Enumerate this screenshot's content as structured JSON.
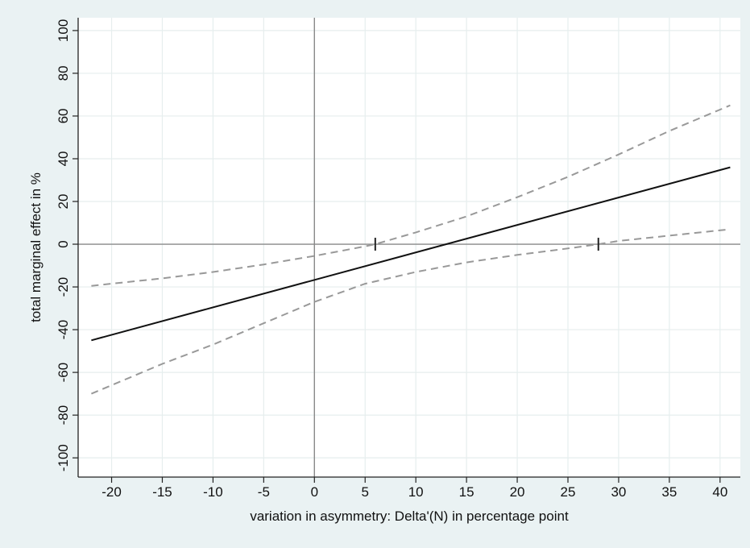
{
  "chart_data": {
    "type": "line",
    "title": "",
    "xlabel": "variation in asymmetry: Delta'(N) in percentage point",
    "ylabel": "total marginal effect in %",
    "xlim": [
      -23.3,
      42.0
    ],
    "ylim": [
      -109,
      106
    ],
    "x_ticks": [
      -20,
      -15,
      -10,
      -5,
      0,
      5,
      10,
      15,
      20,
      25,
      30,
      35,
      40
    ],
    "y_ticks": [
      100,
      80,
      60,
      40,
      20,
      0,
      -20,
      -40,
      -60,
      -80,
      -100
    ],
    "x_tick_labels": [
      "-20",
      "-15",
      "-10",
      "-5",
      "0",
      "5",
      "10",
      "15",
      "20",
      "25",
      "30",
      "35",
      "40"
    ],
    "y_tick_labels": [
      "100",
      "80",
      "60",
      "40",
      "20",
      "0",
      "-20",
      "-40",
      "-60",
      "-80",
      "-100"
    ],
    "grid": true,
    "reference_lines": {
      "x": 0,
      "y": 0
    },
    "series": [
      {
        "style": "solid",
        "color": "#111111",
        "x": [
          -22,
          41
        ],
        "y": [
          -45,
          36
        ]
      },
      {
        "style": "dashed",
        "color": "#999999",
        "x": [
          -22,
          -15,
          -10,
          -5,
          0,
          5,
          6,
          10,
          15,
          20,
          25,
          30,
          35,
          41
        ],
        "y": [
          -19.5,
          -16,
          -13,
          -9.5,
          -5.5,
          -1,
          0,
          5.5,
          13,
          22,
          31.5,
          42,
          53,
          65
        ]
      },
      {
        "style": "dashed",
        "color": "#999999",
        "x": [
          -22,
          -15,
          -10,
          -5,
          0,
          5,
          10,
          15,
          20,
          25,
          28,
          30,
          35,
          41
        ],
        "y": [
          -70,
          -56,
          -47,
          -37,
          -27,
          -18.5,
          -13,
          -8.5,
          -5,
          -2,
          0,
          1.5,
          4,
          7
        ]
      }
    ],
    "markers": [
      {
        "x": 6,
        "y": 0
      },
      {
        "x": 28,
        "y": 0
      }
    ]
  }
}
